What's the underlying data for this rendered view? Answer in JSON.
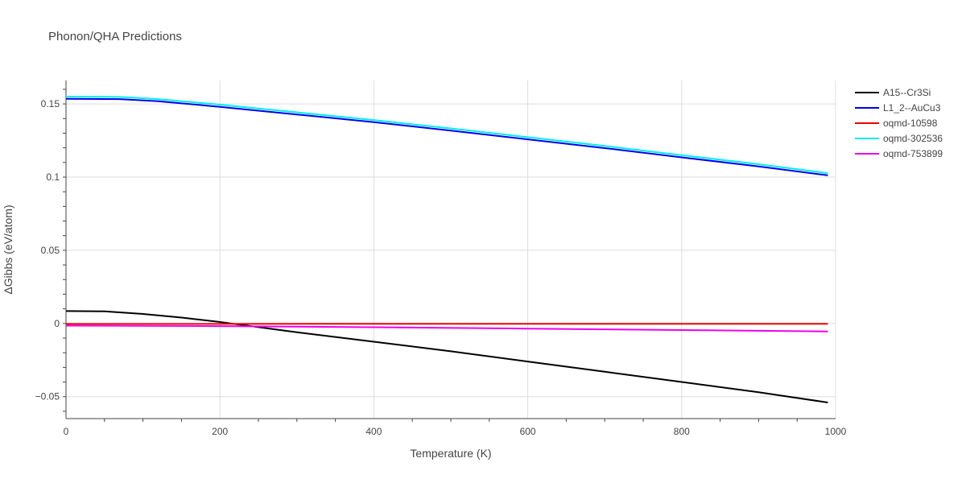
{
  "chart_data": {
    "type": "line",
    "title": "Phonon/QHA Predictions",
    "xlabel": "Temperature (K)",
    "ylabel": "ΔGibbs (eV/atom)",
    "xlim": [
      0,
      1000
    ],
    "ylim": [
      -0.065,
      0.166
    ],
    "xticks": [
      0,
      200,
      400,
      600,
      800,
      1000
    ],
    "xtick_labels": [
      "0",
      "200",
      "400",
      "600",
      "800",
      "1000"
    ],
    "yticks": [
      -0.05,
      0,
      0.05,
      0.1,
      0.15
    ],
    "ytick_labels": [
      "−0.05",
      "0",
      "0.05",
      "0.1",
      "0.15"
    ],
    "grid": true,
    "legend_position": "right",
    "series": [
      {
        "name": "A15--Cr3Si",
        "color": "#000000",
        "x": [
          0,
          50,
          100,
          150,
          200,
          250,
          300,
          400,
          500,
          600,
          700,
          800,
          900,
          990
        ],
        "y": [
          0.0085,
          0.0083,
          0.0065,
          0.004,
          0.001,
          -0.0025,
          -0.006,
          -0.0125,
          -0.019,
          -0.026,
          -0.033,
          -0.04,
          -0.047,
          -0.054
        ]
      },
      {
        "name": "L1_2--AuCu3",
        "color": "#0000ee",
        "x": [
          0,
          70,
          120,
          200,
          300,
          400,
          500,
          600,
          700,
          800,
          900,
          990
        ],
        "y": [
          0.1535,
          0.1533,
          0.1518,
          0.148,
          0.1428,
          0.1375,
          0.1318,
          0.1258,
          0.1198,
          0.1135,
          0.1073,
          0.1012
        ]
      },
      {
        "name": "oqmd-10598",
        "color": "#ee0000",
        "x": [
          0,
          200,
          400,
          600,
          800,
          990
        ],
        "y": [
          -0.0003,
          -0.0003,
          -0.0002,
          -0.0002,
          -0.0002,
          -0.0002
        ]
      },
      {
        "name": "oqmd-302536",
        "color": "#00eeee",
        "x": [
          0,
          70,
          120,
          200,
          300,
          400,
          500,
          600,
          700,
          800,
          900,
          990
        ],
        "y": [
          0.155,
          0.1548,
          0.1533,
          0.1495,
          0.1443,
          0.139,
          0.1333,
          0.1273,
          0.1213,
          0.115,
          0.1088,
          0.1027
        ]
      },
      {
        "name": "oqmd-753899",
        "color": "#ee00ee",
        "x": [
          0,
          200,
          400,
          600,
          800,
          990
        ],
        "y": [
          -0.0015,
          -0.0018,
          -0.0026,
          -0.0035,
          -0.0045,
          -0.0055
        ]
      }
    ]
  }
}
